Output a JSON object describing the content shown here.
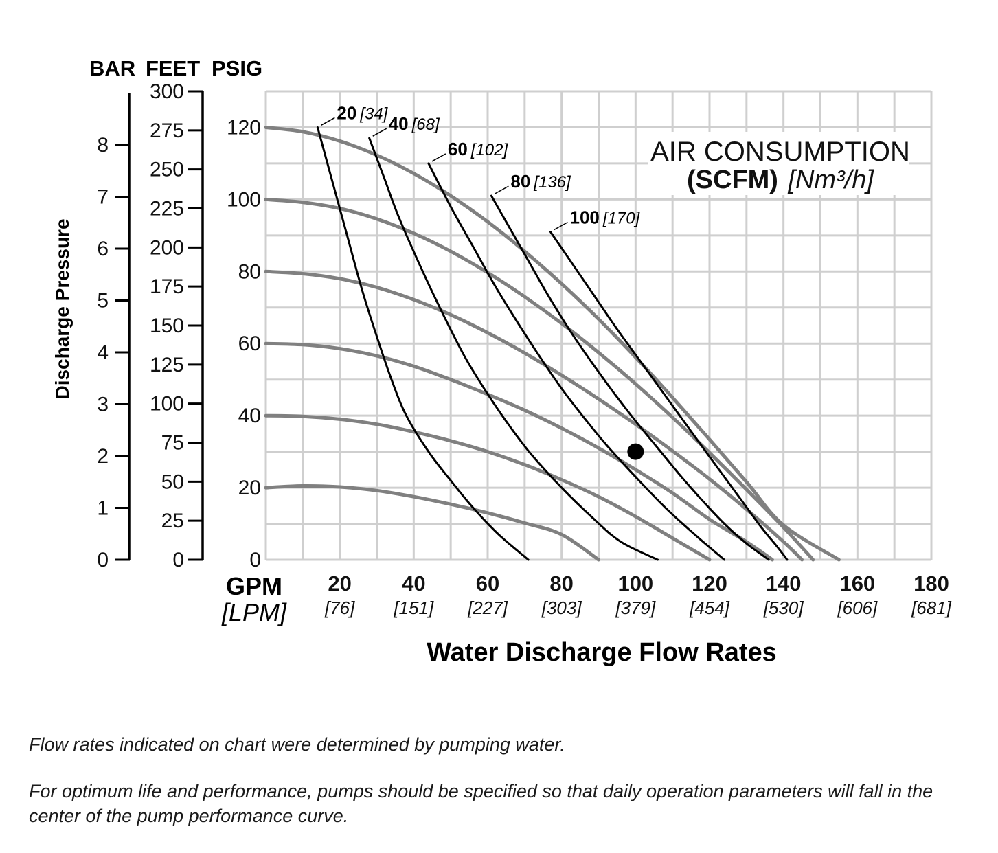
{
  "chart_data": {
    "type": "line",
    "title": "AIR CONSUMPTION",
    "title_line2_bold": "(SCFM)",
    "title_line2_unit": "[Nm³/h]",
    "xlabel": "Water Discharge Flow Rates",
    "x_unit_primary": "GPM",
    "x_unit_secondary": "[LPM]",
    "ylabel": "Discharge Pressure",
    "y_unit_bar": "BAR",
    "y_unit_feet": "FEET",
    "y_unit_psig": "PSIG",
    "xlim": [
      0,
      180
    ],
    "ylim_psig": [
      0,
      130
    ],
    "grid": true,
    "x_ticks": [
      {
        "gpm": "20",
        "lpm": "[76]"
      },
      {
        "gpm": "40",
        "lpm": "[151]"
      },
      {
        "gpm": "60",
        "lpm": "[227]"
      },
      {
        "gpm": "80",
        "lpm": "[303]"
      },
      {
        "gpm": "100",
        "lpm": "[379]"
      },
      {
        "gpm": "120",
        "lpm": "[454]"
      },
      {
        "gpm": "140",
        "lpm": "[530]"
      },
      {
        "gpm": "160",
        "lpm": "[606]"
      },
      {
        "gpm": "180",
        "lpm": "[681]"
      }
    ],
    "psig_ticks": [
      "0",
      "20",
      "40",
      "60",
      "80",
      "100",
      "120"
    ],
    "feet_ticks": [
      "0",
      "25",
      "50",
      "75",
      "100",
      "125",
      "150",
      "175",
      "200",
      "225",
      "250",
      "275",
      "300"
    ],
    "bar_ticks": [
      "0",
      "1",
      "2",
      "3",
      "4",
      "5",
      "6",
      "7",
      "8"
    ],
    "pressure_curves": [
      {
        "psig_start": 20,
        "color": "#808080",
        "points": [
          [
            0,
            20
          ],
          [
            10,
            20.5
          ],
          [
            20,
            20.2
          ],
          [
            30,
            19.2
          ],
          [
            40,
            17.5
          ],
          [
            50,
            15.4
          ],
          [
            60,
            13
          ],
          [
            70,
            10.2
          ],
          [
            80,
            7
          ],
          [
            90,
            0
          ]
        ]
      },
      {
        "psig_start": 40,
        "color": "#808080",
        "points": [
          [
            0,
            40
          ],
          [
            10,
            39.8
          ],
          [
            20,
            39
          ],
          [
            30,
            37.6
          ],
          [
            40,
            35.5
          ],
          [
            50,
            33
          ],
          [
            60,
            30
          ],
          [
            70,
            26.4
          ],
          [
            80,
            22.2
          ],
          [
            90,
            17.5
          ],
          [
            100,
            12
          ],
          [
            110,
            6
          ],
          [
            120,
            0
          ]
        ]
      },
      {
        "psig_start": 60,
        "color": "#808080",
        "points": [
          [
            0,
            60
          ],
          [
            10,
            59.7
          ],
          [
            20,
            58.6
          ],
          [
            30,
            56.6
          ],
          [
            40,
            53.7
          ],
          [
            50,
            50
          ],
          [
            60,
            45.9
          ],
          [
            70,
            41.5
          ],
          [
            80,
            36.5
          ],
          [
            90,
            31
          ],
          [
            100,
            25
          ],
          [
            110,
            18.5
          ],
          [
            120,
            11.2
          ],
          [
            130,
            5
          ],
          [
            137,
            0
          ]
        ]
      },
      {
        "psig_start": 80,
        "color": "#808080",
        "points": [
          [
            0,
            80
          ],
          [
            10,
            79.4
          ],
          [
            20,
            78
          ],
          [
            30,
            75.6
          ],
          [
            40,
            72.2
          ],
          [
            50,
            68
          ],
          [
            60,
            63
          ],
          [
            70,
            57.4
          ],
          [
            80,
            51.2
          ],
          [
            90,
            44.6
          ],
          [
            100,
            37.6
          ],
          [
            110,
            30.2
          ],
          [
            120,
            22.4
          ],
          [
            130,
            14
          ],
          [
            140,
            5
          ],
          [
            145,
            0
          ]
        ]
      },
      {
        "psig_start": 100,
        "color": "#808080",
        "points": [
          [
            0,
            100
          ],
          [
            10,
            99.2
          ],
          [
            20,
            97.5
          ],
          [
            30,
            94.6
          ],
          [
            40,
            90.6
          ],
          [
            50,
            85.6
          ],
          [
            60,
            79.7
          ],
          [
            70,
            73
          ],
          [
            80,
            65.6
          ],
          [
            90,
            57.5
          ],
          [
            100,
            48.8
          ],
          [
            110,
            39.5
          ],
          [
            120,
            29.7
          ],
          [
            130,
            19.5
          ],
          [
            140,
            9
          ],
          [
            148,
            0
          ]
        ]
      },
      {
        "psig_start": 120,
        "color": "#808080",
        "points": [
          [
            0,
            120
          ],
          [
            10,
            118.8
          ],
          [
            20,
            116.2
          ],
          [
            30,
            112.3
          ],
          [
            40,
            107.2
          ],
          [
            50,
            101
          ],
          [
            60,
            93.8
          ],
          [
            70,
            85.6
          ],
          [
            80,
            76.6
          ],
          [
            90,
            66.8
          ],
          [
            100,
            56.2
          ],
          [
            110,
            45
          ],
          [
            120,
            33.4
          ],
          [
            130,
            21.6
          ],
          [
            140,
            9.6
          ],
          [
            155,
            0
          ]
        ]
      }
    ],
    "air_curves": [
      {
        "label": "20",
        "unit": "[34]",
        "color": "#000000",
        "points": [
          [
            14,
            120
          ],
          [
            18,
            105
          ],
          [
            22,
            90
          ],
          [
            26,
            75
          ],
          [
            30,
            62
          ],
          [
            34,
            50
          ],
          [
            38,
            40
          ],
          [
            44,
            30
          ],
          [
            50,
            22
          ],
          [
            56,
            14.5
          ],
          [
            63,
            7
          ],
          [
            71,
            0
          ]
        ]
      },
      {
        "label": "40",
        "unit": "[68]",
        "color": "#000000",
        "points": [
          [
            28,
            117
          ],
          [
            32,
            106
          ],
          [
            36,
            95
          ],
          [
            42,
            81
          ],
          [
            48,
            68
          ],
          [
            54,
            56
          ],
          [
            60,
            46
          ],
          [
            66,
            37
          ],
          [
            72,
            29
          ],
          [
            80,
            20
          ],
          [
            88,
            12
          ],
          [
            96,
            5
          ],
          [
            106,
            0
          ]
        ]
      },
      {
        "label": "60",
        "unit": "[102]",
        "color": "#000000",
        "points": [
          [
            44,
            110
          ],
          [
            50,
            98
          ],
          [
            56,
            87
          ],
          [
            62,
            76
          ],
          [
            68,
            66
          ],
          [
            74,
            56.5
          ],
          [
            80,
            47.5
          ],
          [
            86,
            39.5
          ],
          [
            92,
            32
          ],
          [
            100,
            23
          ],
          [
            108,
            14.5
          ],
          [
            116,
            7
          ],
          [
            124,
            0
          ]
        ]
      },
      {
        "label": "80",
        "unit": "[136]",
        "color": "#000000",
        "points": [
          [
            61,
            101
          ],
          [
            66,
            92
          ],
          [
            71,
            83
          ],
          [
            76,
            74
          ],
          [
            82,
            64
          ],
          [
            88,
            55
          ],
          [
            94,
            46.5
          ],
          [
            100,
            38.5
          ],
          [
            106,
            31
          ],
          [
            112,
            23.5
          ],
          [
            118,
            16.5
          ],
          [
            124,
            10
          ],
          [
            130,
            4.5
          ],
          [
            136,
            0
          ]
        ]
      },
      {
        "label": "100",
        "unit": "[170]",
        "color": "#000000",
        "points": [
          [
            77,
            91
          ],
          [
            83,
            82
          ],
          [
            89,
            73
          ],
          [
            95,
            64
          ],
          [
            101,
            55.5
          ],
          [
            107,
            47
          ],
          [
            113,
            38.5
          ],
          [
            119,
            30
          ],
          [
            124,
            23
          ],
          [
            129,
            16
          ],
          [
            134,
            9
          ],
          [
            138,
            4
          ],
          [
            141,
            0
          ]
        ]
      }
    ],
    "operating_point": {
      "gpm": 100,
      "psig": 30
    }
  },
  "notes": {
    "line1": "Flow rates indicated on chart were determined by pumping water.",
    "line2": "For optimum life and performance, pumps should be specified so that daily operation parameters will fall in the center of the pump performance curve."
  }
}
